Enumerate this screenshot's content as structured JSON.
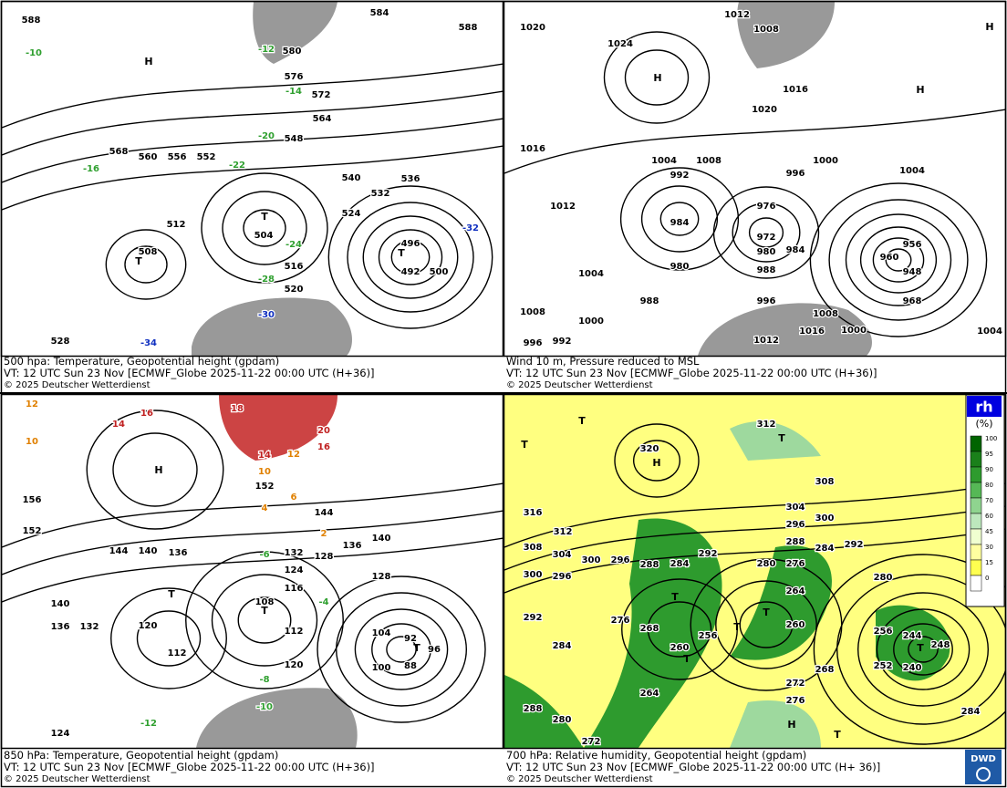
{
  "panels": [
    {
      "caption": {
        "title": "500 hpa: Temperature, Geopotential height (gpdam)",
        "valid": "VT: 12 UTC Sun  23 Nov [ECMWF_Globe 2025-11-22 00:00 UTC  (H+36)]",
        "copyright": "© 2025 Deutscher Wetterdienst"
      },
      "labels": [
        "588",
        "584",
        "588",
        "580",
        "576",
        "572",
        "568",
        "564",
        "560",
        "556",
        "552",
        "548",
        "540",
        "536",
        "532",
        "524",
        "512",
        "504",
        "508",
        "496",
        "492",
        "500",
        "516",
        "520",
        "528",
        "-10",
        "-12",
        "-14",
        "-16",
        "-20",
        "-22",
        "-24",
        "-28",
        "-30",
        "-32",
        "-34",
        "H",
        "T",
        "T",
        "T"
      ]
    },
    {
      "caption": {
        "title": "Wind 10 m, Pressure reduced to MSL",
        "valid": "VT: 12 UTC Sun  23 Nov [ECMWF_Globe 2025-11-22 00:00 UTC  (H+36)]",
        "copyright": "© 2025 Deutscher Wetterdienst"
      },
      "labels": [
        "1020",
        "1024",
        "1012",
        "1008",
        "1016",
        "1020",
        "1016",
        "1004",
        "992",
        "1008",
        "1000",
        "996",
        "1004",
        "1012",
        "984",
        "976",
        "972",
        "980",
        "984",
        "960",
        "956",
        "948",
        "968",
        "1004",
        "980",
        "988",
        "988",
        "1000",
        "996",
        "1008",
        "1008",
        "1016",
        "1012",
        "1000",
        "996",
        "992",
        "1004",
        "H",
        "H",
        "H"
      ]
    },
    {
      "caption": {
        "title": "850 hPa:  Temperature, Geopotential height (gpdam)",
        "valid": "VT: 12 UTC Sun  23 Nov [ECMWF_Globe 2025-11-22 00:00 UTC  (H+36)]",
        "copyright": "© 2025 Deutscher Wetterdienst"
      },
      "labels": [
        "12",
        "16",
        "18",
        "20",
        "16",
        "14",
        "10",
        "H",
        "12",
        "14",
        "10",
        "152",
        "156",
        "152",
        "144",
        "140",
        "136",
        "144",
        "140",
        "136",
        "132",
        "128",
        "128",
        "124",
        "116",
        "108",
        "112",
        "120",
        "104",
        "100",
        "88",
        "96",
        "92",
        "140",
        "136",
        "132",
        "120",
        "112",
        "124",
        "T",
        "T",
        "T",
        "-6",
        "-8",
        "-10",
        "-12",
        "-4",
        "2",
        "6",
        "4"
      ]
    },
    {
      "caption": {
        "title": "700 hPa:  Relative humidity, Geopotential height (gpdam)",
        "valid": "VT: 12 UTC Sun  23 Nov [ECMWF_Globe  2025-11-22 00:00 UTC  (H+ 36)]",
        "copyright": "© 2025 Deutscher Wetterdienst"
      },
      "labels": [
        "312",
        "320",
        "308",
        "304",
        "300",
        "316",
        "312",
        "308",
        "304",
        "300",
        "296",
        "300",
        "296",
        "292",
        "288",
        "284",
        "280",
        "276",
        "288",
        "284",
        "292",
        "280",
        "296",
        "264",
        "260",
        "268",
        "272",
        "276",
        "256",
        "252",
        "248",
        "244",
        "240",
        "260",
        "256",
        "276",
        "268",
        "264",
        "288",
        "280",
        "272",
        "284",
        "284",
        "292",
        "T",
        "T",
        "H",
        "T",
        "T",
        "T",
        "T",
        "T",
        "T",
        "H",
        "T"
      ]
    }
  ],
  "legend": {
    "title": "rh",
    "unit": "(%)",
    "levels": [
      "100",
      "95",
      "90",
      "80",
      "70",
      "60",
      "45",
      "30",
      "15",
      "0"
    ]
  },
  "logo": "DWD"
}
